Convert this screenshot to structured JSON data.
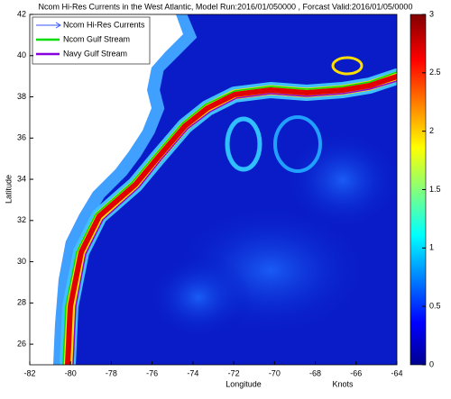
{
  "map": {
    "title": "Ncom Hi-Res Currents in the West Atlantic, Model Run:2016/01/050000 , Forcast Valid:2016/01/05/0000",
    "x_label": "Longitude",
    "y_label": "Latitude",
    "xlim": [
      -82,
      -64
    ],
    "xticks": [
      -82,
      -80,
      -78,
      -76,
      -74,
      -72,
      -70,
      -68,
      -66,
      -64
    ],
    "ylim": [
      25,
      42
    ],
    "yticks": [
      26,
      28,
      30,
      32,
      34,
      36,
      38,
      40,
      42
    ],
    "colorbar": {
      "label": "Knots",
      "lim": [
        0,
        3
      ],
      "ticks": [
        0,
        0.5,
        1,
        1.5,
        2,
        2.5,
        3
      ]
    },
    "legend": [
      {
        "name": "Ncom Hi-Res Currents",
        "color": "#3355ff"
      },
      {
        "name": "Ncom Gulf Stream",
        "color": "#00dd00"
      },
      {
        "name": "Navy Gulf Stream",
        "color": "#8800dd"
      }
    ]
  }
}
